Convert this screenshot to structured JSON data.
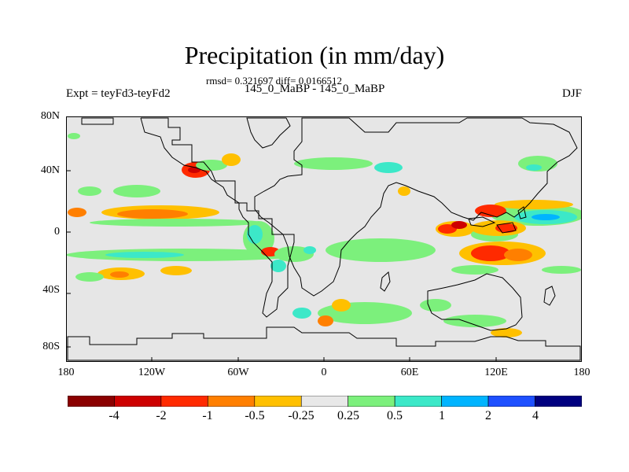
{
  "header": {
    "title": "Precipitation (in mm/day)",
    "stats": "rmsd= 0.321697 diff= 0.0166512",
    "subtitle": "145_0_MaBP - 145_0_MaBP",
    "expt": "Expt = teyFd3-teyFd2",
    "season": "DJF"
  },
  "axes": {
    "y_labels": [
      "80N",
      "40N",
      "0",
      "40S",
      "80S"
    ],
    "x_labels": [
      "180",
      "120W",
      "60W",
      "0",
      "60E",
      "120E",
      "180"
    ]
  },
  "colorbar": {
    "labels": [
      "-4",
      "-2",
      "-1",
      "-0.5",
      "-0.25",
      "0.25",
      "0.5",
      "1",
      "2",
      "4"
    ],
    "colors": [
      "#8b0000",
      "#cd0000",
      "#ff2a00",
      "#ff7f00",
      "#ffc000",
      "#e8e8e8",
      "#7cf07c",
      "#3ce8c8",
      "#00b4ff",
      "#1e50ff",
      "#000080"
    ]
  },
  "map": {
    "background_color": "#e6e6e6",
    "coastline_color": "#000000"
  }
}
